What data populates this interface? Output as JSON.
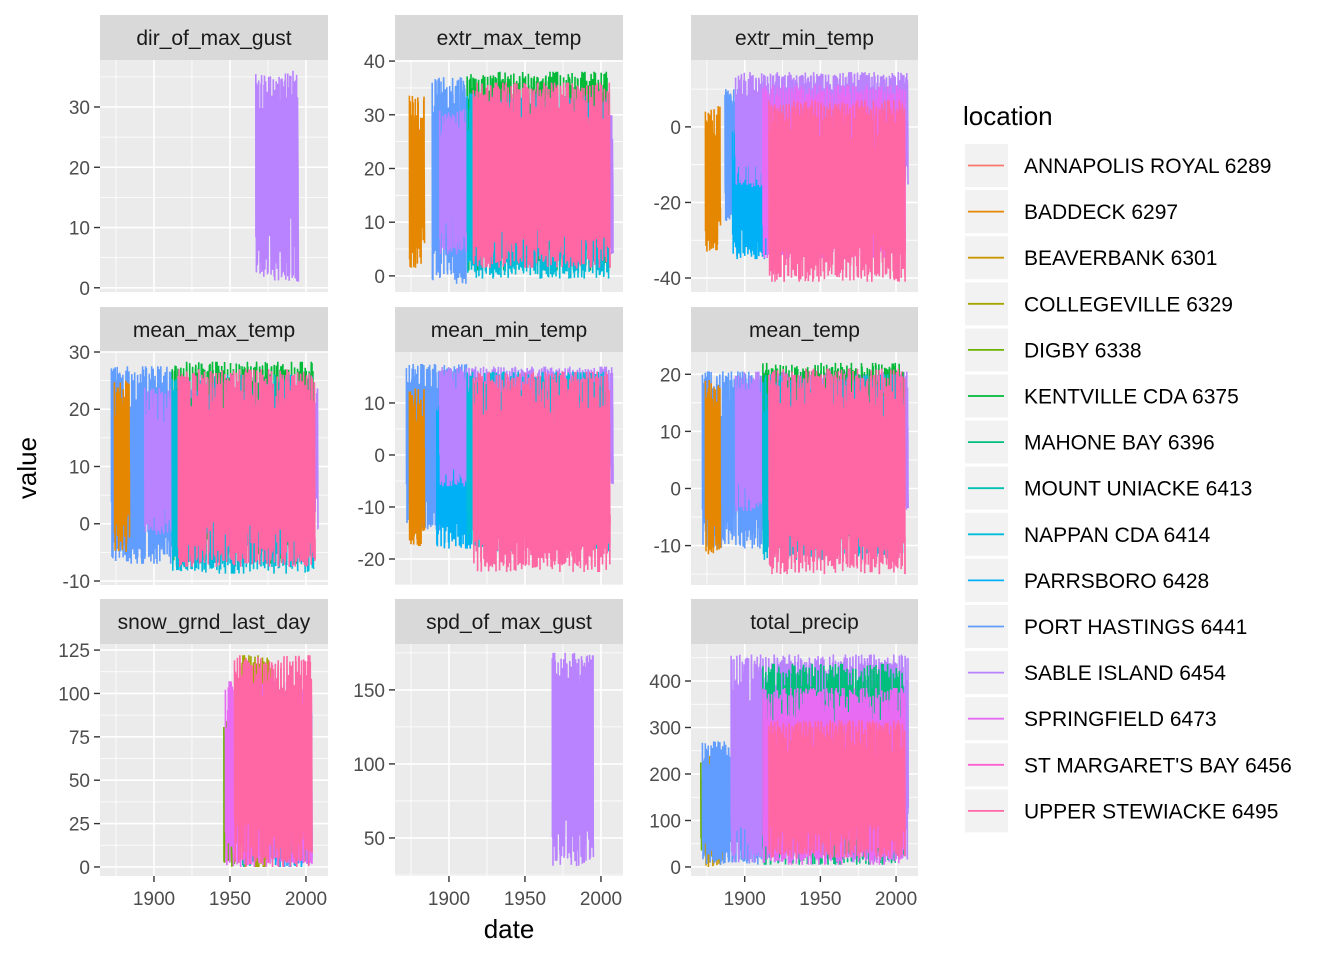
{
  "chart_data": {
    "type": "line",
    "title": "",
    "xlabel": "date",
    "ylabel": "value",
    "facet_layout": "3x3 grid, free y scales, shared x",
    "xlim": [
      1864.5,
      2014.5
    ],
    "x_ticks": [
      1900,
      1950,
      2000
    ],
    "x_tick_labels": [
      "1900",
      "1950",
      "2000"
    ],
    "grid": true,
    "legend": {
      "title": "location",
      "placement": "right",
      "entries": [
        {
          "name": "ANNAPOLIS ROYAL 6289",
          "color": "#F8766D"
        },
        {
          "name": "BADDECK 6297",
          "color": "#E58700"
        },
        {
          "name": "BEAVERBANK 6301",
          "color": "#C99800"
        },
        {
          "name": "COLLEGEVILLE 6329",
          "color": "#A3A500"
        },
        {
          "name": "DIGBY 6338",
          "color": "#6BB100"
        },
        {
          "name": "KENTVILLE CDA 6375",
          "color": "#00BA38"
        },
        {
          "name": "MAHONE BAY 6396",
          "color": "#00BF7D"
        },
        {
          "name": "MOUNT UNIACKE 6413",
          "color": "#00C0AF"
        },
        {
          "name": "NAPPAN CDA 6414",
          "color": "#00BCD8"
        },
        {
          "name": "PARRSBORO 6428",
          "color": "#00B0F6"
        },
        {
          "name": "PORT HASTINGS 6441",
          "color": "#619CFF"
        },
        {
          "name": "SABLE ISLAND 6454",
          "color": "#B983FF"
        },
        {
          "name": "SPRINGFIELD 6473",
          "color": "#E76BF3"
        },
        {
          "name": "ST MARGARET'S BAY 6456",
          "color": "#FD61D1"
        },
        {
          "name": "UPPER STEWIACKE 6495",
          "color": "#FF67A4"
        }
      ]
    },
    "panels": [
      {
        "name": "dir_of_max_gust",
        "ylim": [
          -0.7,
          37.8
        ],
        "y_ticks": [
          0,
          10,
          20,
          30
        ],
        "y_tick_labels": [
          "0",
          "10",
          "20",
          "30"
        ],
        "series": [
          {
            "location": "SABLE ISLAND 6454",
            "x_range": [
              1967,
              1995
            ],
            "y_low": 1,
            "y_high": 36
          }
        ]
      },
      {
        "name": "extr_max_temp",
        "ylim": [
          -3,
          40.2
        ],
        "y_ticks": [
          0,
          10,
          20,
          30,
          40
        ],
        "y_tick_labels": [
          "0",
          "10",
          "20",
          "30",
          "40"
        ],
        "series": [
          {
            "location": "BADDECK 6297",
            "x_range": [
              1874,
              1884
            ],
            "y_low": 1.5,
            "y_high": 34
          },
          {
            "location": "PORT HASTINGS 6441",
            "x_range": [
              1889,
              1912
            ],
            "y_low": -1.5,
            "y_high": 37
          },
          {
            "location": "SABLE ISLAND 6454",
            "x_range": [
              1894,
              2008
            ],
            "y_low": 4,
            "y_high": 31
          },
          {
            "location": "KENTVILLE CDA 6375",
            "x_range": [
              1912,
              2005
            ],
            "y_low": 1,
            "y_high": 38
          },
          {
            "location": "NAPPAN CDA 6414",
            "x_range": [
              1912,
              2005
            ],
            "y_low": -0.5,
            "y_high": 34
          },
          {
            "location": "UPPER STEWIACKE 6495",
            "x_range": [
              1916,
              2006
            ],
            "y_low": 1.5,
            "y_high": 36
          }
        ]
      },
      {
        "name": "extr_min_temp",
        "ylim": [
          -43.7,
          17.7
        ],
        "y_ticks": [
          -40,
          -20,
          0
        ],
        "y_tick_labels": [
          "-40",
          "-20",
          "0"
        ],
        "series": [
          {
            "location": "BADDECK 6297",
            "x_range": [
              1874,
              1884
            ],
            "y_low": -33,
            "y_high": 5.5
          },
          {
            "location": "PORT HASTINGS 6441",
            "x_range": [
              1887,
              1912
            ],
            "y_low": -26,
            "y_high": 10
          },
          {
            "location": "PARRSBORO 6428",
            "x_range": [
              1892,
              1915
            ],
            "y_low": -35,
            "y_high": 0
          },
          {
            "location": "SABLE ISLAND 6454",
            "x_range": [
              1894,
              2008
            ],
            "y_low": -16,
            "y_high": 14.5
          },
          {
            "location": "SPRINGFIELD 6473",
            "x_range": [
              1912,
              2006
            ],
            "y_low": -35,
            "y_high": 11
          },
          {
            "location": "UPPER STEWIACKE 6495",
            "x_range": [
              1916,
              2006
            ],
            "y_low": -41,
            "y_high": 7
          }
        ]
      },
      {
        "name": "mean_max_temp",
        "ylim": [
          -10.7,
          30
        ],
        "y_ticks": [
          -10,
          0,
          10,
          20,
          30
        ],
        "y_tick_labels": [
          "-10",
          "0",
          "10",
          "20",
          "30"
        ],
        "series": [
          {
            "location": "PORT HASTINGS 6441",
            "x_range": [
              1872,
              1912
            ],
            "y_low": -7,
            "y_high": 27.5
          },
          {
            "location": "BADDECK 6297",
            "x_range": [
              1874,
              1884
            ],
            "y_low": -5,
            "y_high": 25
          },
          {
            "location": "SABLE ISLAND 6454",
            "x_range": [
              1894,
              2008
            ],
            "y_low": -2,
            "y_high": 24
          },
          {
            "location": "KENTVILLE CDA 6375",
            "x_range": [
              1912,
              2005
            ],
            "y_low": -7,
            "y_high": 28.3
          },
          {
            "location": "NAPPAN CDA 6414",
            "x_range": [
              1912,
              2005
            ],
            "y_low": -8.7,
            "y_high": 26
          },
          {
            "location": "UPPER STEWIACKE 6495",
            "x_range": [
              1916,
              2006
            ],
            "y_low": -7.5,
            "y_high": 27
          }
        ]
      },
      {
        "name": "mean_min_temp",
        "ylim": [
          -25,
          19.8
        ],
        "y_ticks": [
          -20,
          -10,
          0,
          10
        ],
        "y_tick_labels": [
          "-20",
          "-10",
          "0",
          "10"
        ],
        "series": [
          {
            "location": "PORT HASTINGS 6441",
            "x_range": [
              1872,
              1912
            ],
            "y_low": -14.5,
            "y_high": 17.5
          },
          {
            "location": "BADDECK 6297",
            "x_range": [
              1874,
              1884
            ],
            "y_low": -17.5,
            "y_high": 13
          },
          {
            "location": "PARRSBORO 6428",
            "x_range": [
              1892,
              1915
            ],
            "y_low": -18,
            "y_high": 10
          },
          {
            "location": "SABLE ISLAND 6454",
            "x_range": [
              1894,
              2008
            ],
            "y_low": -6,
            "y_high": 17
          },
          {
            "location": "NAPPAN CDA 6414",
            "x_range": [
              1912,
              2005
            ],
            "y_low": -18.5,
            "y_high": 16
          },
          {
            "location": "UPPER STEWIACKE 6495",
            "x_range": [
              1916,
              2006
            ],
            "y_low": -22.5,
            "y_high": 16
          }
        ]
      },
      {
        "name": "mean_temp",
        "ylim": [
          -16.9,
          23.9
        ],
        "y_ticks": [
          -10,
          0,
          10,
          20
        ],
        "y_tick_labels": [
          "-10",
          "0",
          "10",
          "20"
        ],
        "series": [
          {
            "location": "PORT HASTINGS 6441",
            "x_range": [
              1872,
              1912
            ],
            "y_low": -10.5,
            "y_high": 20.5
          },
          {
            "location": "BADDECK 6297",
            "x_range": [
              1874,
              1884
            ],
            "y_low": -11.5,
            "y_high": 19
          },
          {
            "location": "SABLE ISLAND 6454",
            "x_range": [
              1894,
              2008
            ],
            "y_low": -4,
            "y_high": 20.5
          },
          {
            "location": "KENTVILLE CDA 6375",
            "x_range": [
              1912,
              2005
            ],
            "y_low": -10,
            "y_high": 22
          },
          {
            "location": "NAPPAN CDA 6414",
            "x_range": [
              1912,
              2005
            ],
            "y_low": -12.5,
            "y_high": 20
          },
          {
            "location": "UPPER STEWIACKE 6495",
            "x_range": [
              1916,
              2006
            ],
            "y_low": -15,
            "y_high": 21
          }
        ]
      },
      {
        "name": "snow_grnd_last_day",
        "ylim": [
          -5.2,
          128.5
        ],
        "y_ticks": [
          0,
          25,
          50,
          75,
          100,
          125
        ],
        "y_tick_labels": [
          "0",
          "25",
          "50",
          "75",
          "100",
          "125"
        ],
        "series": [
          {
            "location": "DIGBY 6338",
            "x_range": [
              1946,
              1953
            ],
            "y_low": 0,
            "y_high": 84
          },
          {
            "location": "COLLEGEVILLE 6329",
            "x_range": [
              1958,
              1977
            ],
            "y_low": 0,
            "y_high": 122
          },
          {
            "location": "MOUNT UNIACKE 6413",
            "x_range": [
              1958,
              1968
            ],
            "y_low": 0,
            "y_high": 97
          },
          {
            "location": "PARRSBORO 6428",
            "x_range": [
              1975,
              2004
            ],
            "y_low": 0,
            "y_high": 90
          },
          {
            "location": "PORT HASTINGS 6441",
            "x_range": [
              1985,
              1990
            ],
            "y_low": 0,
            "y_high": 105
          },
          {
            "location": "SPRINGFIELD 6473",
            "x_range": [
              1947,
              2004
            ],
            "y_low": 0,
            "y_high": 107
          },
          {
            "location": "UPPER STEWIACKE 6495",
            "x_range": [
              1953,
              2004
            ],
            "y_low": 0,
            "y_high": 122
          }
        ]
      },
      {
        "name": "spd_of_max_gust",
        "ylim": [
          24.3,
          181
        ],
        "y_ticks": [
          50,
          100,
          150
        ],
        "y_tick_labels": [
          "50",
          "100",
          "150"
        ],
        "series": [
          {
            "location": "SABLE ISLAND 6454",
            "x_range": [
              1968,
              1995
            ],
            "y_low": 31,
            "y_high": 175
          }
        ]
      },
      {
        "name": "total_precip",
        "ylim": [
          -19.4,
          479.6
        ],
        "y_ticks": [
          0,
          100,
          200,
          300,
          400
        ],
        "y_tick_labels": [
          "0",
          "100",
          "200",
          "300",
          "400"
        ],
        "series": [
          {
            "location": "DIGBY 6338",
            "x_range": [
              1871,
              1876
            ],
            "y_low": 30,
            "y_high": 228
          },
          {
            "location": "BEAVERBANK 6301",
            "x_range": [
              1874,
              1886
            ],
            "y_low": 0,
            "y_high": 245
          },
          {
            "location": "PORT HASTINGS 6441",
            "x_range": [
              1872,
              1912
            ],
            "y_low": 5,
            "y_high": 270
          },
          {
            "location": "SABLE ISLAND 6454",
            "x_range": [
              1891,
              2008
            ],
            "y_low": 10,
            "y_high": 457
          },
          {
            "location": "MAHONE BAY 6396",
            "x_range": [
              1912,
              2005
            ],
            "y_low": 5,
            "y_high": 437
          },
          {
            "location": "SPRINGFIELD 6473",
            "x_range": [
              1912,
              2006
            ],
            "y_low": 5,
            "y_high": 385
          },
          {
            "location": "UPPER STEWIACKE 6495",
            "x_range": [
              1916,
              2006
            ],
            "y_low": 20,
            "y_high": 315
          }
        ]
      }
    ]
  }
}
